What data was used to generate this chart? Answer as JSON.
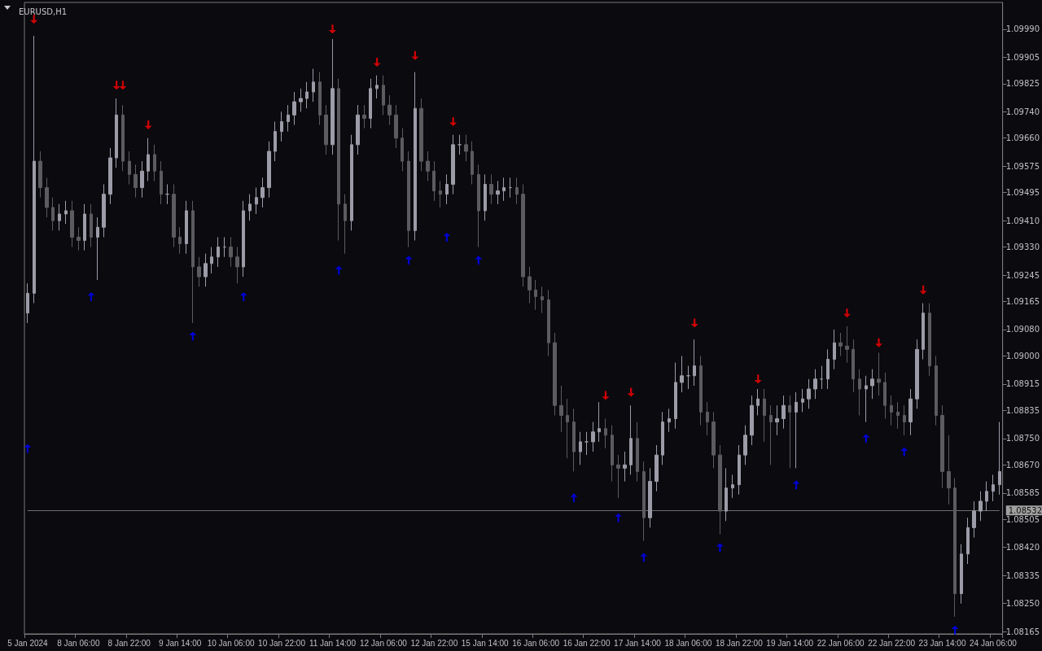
{
  "chart_data": {
    "type": "candlestick",
    "title": "EURUSD,H1",
    "categories": [
      "5 Jan 2024",
      null,
      null,
      null,
      null,
      null,
      null,
      null,
      "8 Jan 06:00",
      null,
      null,
      null,
      null,
      null,
      null,
      null,
      "8 Jan 22:00",
      null,
      null,
      null,
      null,
      null,
      null,
      null,
      "9 Jan 14:00",
      null,
      null,
      null,
      null,
      null,
      null,
      null,
      "10 Jan 06:00",
      null,
      null,
      null,
      null,
      null,
      null,
      null,
      "10 Jan 22:00",
      null,
      null,
      null,
      null,
      null,
      null,
      null,
      "11 Jan 14:00",
      null,
      null,
      null,
      null,
      null,
      null,
      null,
      "12 Jan 06:00",
      null,
      null,
      null,
      null,
      null,
      null,
      null,
      "12 Jan 22:00",
      null,
      null,
      null,
      null,
      null,
      null,
      null,
      "15 Jan 14:00",
      null,
      null,
      null,
      null,
      null,
      null,
      null,
      "16 Jan 06:00",
      null,
      null,
      null,
      null,
      null,
      null,
      null,
      "16 Jan 22:00",
      null,
      null,
      null,
      null,
      null,
      null,
      null,
      "17 Jan 14:00",
      null,
      null,
      null,
      null,
      null,
      null,
      null,
      "18 Jan 06:00",
      null,
      null,
      null,
      null,
      null,
      null,
      null,
      "18 Jan 22:00",
      null,
      null,
      null,
      null,
      null,
      null,
      null,
      "19 Jan 14:00",
      null,
      null,
      null,
      null,
      null,
      null,
      null,
      "22 Jan 06:00",
      null,
      null,
      null,
      null,
      null,
      null,
      null,
      "22 Jan 22:00",
      null,
      null,
      null,
      null,
      null,
      null,
      null,
      "23 Jan 14:00",
      null,
      null,
      null,
      null,
      null,
      null,
      null,
      "24 Jan 06:00",
      null
    ],
    "ylim": [
      1.08158,
      1.10071
    ],
    "yticks": [
      {
        "value": 1.08165,
        "label": "1.08165"
      },
      {
        "value": 1.0825,
        "label": "1.08250"
      },
      {
        "value": 1.08335,
        "label": "1.08335"
      },
      {
        "value": 1.0842,
        "label": "1.08420"
      },
      {
        "value": 1.08505,
        "label": "1.08505"
      },
      {
        "value": 1.08585,
        "label": "1.08585"
      },
      {
        "value": 1.0867,
        "label": "1.08670"
      },
      {
        "value": 1.0875,
        "label": "1.08750"
      },
      {
        "value": 1.08835,
        "label": "1.08835"
      },
      {
        "value": 1.08915,
        "label": "1.08915"
      },
      {
        "value": 1.09,
        "label": "1.09000"
      },
      {
        "value": 1.0908,
        "label": "1.09080"
      },
      {
        "value": 1.09165,
        "label": "1.09165"
      },
      {
        "value": 1.09245,
        "label": "1.09245"
      },
      {
        "value": 1.0933,
        "label": "1.09330"
      },
      {
        "value": 1.0941,
        "label": "1.09410"
      },
      {
        "value": 1.09495,
        "label": "1.09495"
      },
      {
        "value": 1.09575,
        "label": "1.09575"
      },
      {
        "value": 1.0966,
        "label": "1.09660"
      },
      {
        "value": 1.0974,
        "label": "1.09740"
      },
      {
        "value": 1.09825,
        "label": "1.09825"
      },
      {
        "value": 1.09905,
        "label": "1.09905"
      },
      {
        "value": 1.0999,
        "label": "1.09990"
      }
    ],
    "ref_lines": [
      {
        "axis": "y",
        "value": 1.08532,
        "label": "1.08532",
        "color": "#6e6e6e"
      }
    ],
    "series": [
      {
        "colors": [
          "#9c9ca8",
          "#9c9ca8",
          "#5c5c60",
          "#5c5c60",
          "#5c5c60",
          "#9c9ca8",
          "#9c9ca8",
          "#5c5c60",
          "#5c5c60",
          "#9c9ca8",
          "#5c5c60",
          "#9c9ca8",
          "#9c9ca8",
          "#9c9ca8",
          "#9c9ca8",
          "#5c5c60",
          "#5c5c60",
          "#5c5c60",
          "#9c9ca8",
          "#9c9ca8",
          "#5c5c60",
          "#5c5c60",
          "#9c9ca8",
          "#5c5c60",
          "#5c5c60",
          "#9c9ca8",
          "#5c5c60",
          "#5c5c60",
          "#9c9ca8",
          "#9c9ca8",
          "#9c9ca8",
          "#9c9ca8",
          "#5c5c60",
          "#5c5c60",
          "#9c9ca8",
          "#9c9ca8",
          "#9c9ca8",
          "#9c9ca8",
          "#9c9ca8",
          "#9c9ca8",
          "#9c9ca8",
          "#9c9ca8",
          "#9c9ca8",
          "#9c9ca8",
          "#9c9ca8",
          "#9c9ca8",
          "#5c5c60",
          "#5c5c60",
          "#9c9ca8",
          "#5c5c60",
          "#5c5c60",
          "#9c9ca8",
          "#9c9ca8",
          "#5c5c60",
          "#9c9ca8",
          "#9c9ca8",
          "#5c5c60",
          "#5c5c60",
          "#5c5c60",
          "#5c5c60",
          "#5c5c60",
          "#9c9ca8",
          "#5c5c60",
          "#5c5c60",
          "#5c5c60",
          "#5c5c60",
          "#9c9ca8",
          "#9c9ca8",
          "#9c9ca8",
          "#5c5c60",
          "#5c5c60",
          "#5c5c60",
          "#9c9ca8",
          "#5c5c60",
          "#9c9ca8",
          "#9c9ca8",
          "#9c9ca8",
          "#5c5c60",
          "#5c5c60",
          "#5c5c60",
          "#5c5c60",
          "#5c5c60",
          "#5c5c60",
          "#5c5c60",
          "#5c5c60",
          "#5c5c60",
          "#5c5c60",
          "#9c9ca8",
          "#9c9ca8",
          "#9c9ca8",
          "#9c9ca8",
          "#5c5c60",
          "#5c5c60",
          "#5c5c60",
          "#9c9ca8",
          "#9c9ca8",
          "#5c5c60",
          "#5c5c60",
          "#9c9ca8",
          "#9c9ca8",
          "#9c9ca8",
          "#9c9ca8",
          "#9c9ca8",
          "#9c9ca8",
          "#9c9ca8",
          "#9c9ca8",
          "#5c5c60",
          "#5c5c60",
          "#5c5c60",
          "#5c5c60",
          "#9c9ca8",
          "#9c9ca8",
          "#9c9ca8",
          "#9c9ca8",
          "#9c9ca8",
          "#9c9ca8",
          "#5c5c60",
          "#5c5c60",
          "#9c9ca8",
          "#9c9ca8",
          "#5c5c60",
          "#9c9ca8",
          "#9c9ca8",
          "#9c9ca8",
          "#9c9ca8",
          "#9c9ca8",
          "#9c9ca8",
          "#9c9ca8",
          "#5c5c60",
          "#5c5c60",
          "#5c5c60",
          "#5c5c60",
          "#9c9ca8",
          "#9c9ca8",
          "#5c5c60",
          "#5c5c60",
          "#5c5c60",
          "#5c5c60",
          "#5c5c60",
          "#9c9ca8",
          "#9c9ca8",
          "#9c9ca8",
          "#5c5c60",
          "#5c5c60",
          "#5c5c60",
          "#5c5c60",
          "#5c5c60",
          "#9c9ca8",
          "#9c9ca8",
          "#9c9ca8",
          "#9c9ca8",
          "#9c9ca8",
          "#9c9ca8",
          "#9c9ca8"
        ],
        "ohlc": [
          [
            1.0913,
            1.0922,
            1.091,
            1.0919
          ],
          [
            1.0919,
            1.0997,
            1.0916,
            1.0959
          ],
          [
            1.0959,
            1.0962,
            1.0948,
            1.0951
          ],
          [
            1.0951,
            1.0954,
            1.0942,
            1.0945
          ],
          [
            1.0945,
            1.0948,
            1.0938,
            1.0941
          ],
          [
            1.0941,
            1.0946,
            1.0938,
            1.0943
          ],
          [
            1.0943,
            1.0947,
            1.094,
            1.0944
          ],
          [
            1.0944,
            1.0947,
            1.0933,
            1.0936
          ],
          [
            1.0936,
            1.0939,
            1.0932,
            1.0935
          ],
          [
            1.0935,
            1.0946,
            1.0932,
            1.0943
          ],
          [
            1.0943,
            1.0946,
            1.0933,
            1.0936
          ],
          [
            1.0936,
            1.0942,
            1.0923,
            1.0939
          ],
          [
            1.0939,
            1.0952,
            1.0936,
            1.0949
          ],
          [
            1.0949,
            1.0963,
            1.0946,
            1.096
          ],
          [
            1.096,
            1.0978,
            1.0957,
            1.0973
          ],
          [
            1.0973,
            1.0976,
            1.0956,
            1.0959
          ],
          [
            1.0959,
            1.0962,
            1.0952,
            1.0955
          ],
          [
            1.0955,
            1.0958,
            1.0948,
            1.0951
          ],
          [
            1.0951,
            1.0959,
            1.0948,
            1.0956
          ],
          [
            1.0956,
            1.0966,
            1.0953,
            1.0961
          ],
          [
            1.0961,
            1.0964,
            1.0953,
            1.0956
          ],
          [
            1.0956,
            1.0959,
            1.0946,
            1.0949
          ],
          [
            1.0949,
            1.0952,
            1.0946,
            1.0949
          ],
          [
            1.0949,
            1.0952,
            1.0933,
            1.0936
          ],
          [
            1.0936,
            1.0939,
            1.0931,
            1.0934
          ],
          [
            1.0934,
            1.0947,
            1.0931,
            1.0944
          ],
          [
            1.0944,
            1.0947,
            1.091,
            1.0927
          ],
          [
            1.0927,
            1.093,
            1.0921,
            1.0924
          ],
          [
            1.0924,
            1.0931,
            1.0921,
            1.0928
          ],
          [
            1.0928,
            1.0933,
            1.0925,
            1.093
          ],
          [
            1.093,
            1.0936,
            1.0927,
            1.0933
          ],
          [
            1.0933,
            1.0936,
            1.093,
            1.0933
          ],
          [
            1.0933,
            1.0936,
            1.0927,
            1.093
          ],
          [
            1.093,
            1.0933,
            1.0922,
            1.0927
          ],
          [
            1.0927,
            1.0947,
            1.0924,
            1.0944
          ],
          [
            1.0944,
            1.0949,
            1.0941,
            1.0946
          ],
          [
            1.0946,
            1.0951,
            1.0943,
            1.0948
          ],
          [
            1.0948,
            1.0954,
            1.0945,
            1.0951
          ],
          [
            1.0951,
            1.0965,
            1.0948,
            1.0962
          ],
          [
            1.0962,
            1.0971,
            1.0959,
            1.0968
          ],
          [
            1.0968,
            1.0974,
            1.0965,
            1.0971
          ],
          [
            1.0971,
            1.0976,
            1.0968,
            1.0973
          ],
          [
            1.0973,
            1.098,
            1.097,
            1.0977
          ],
          [
            1.0977,
            1.0981,
            1.0974,
            1.0978
          ],
          [
            1.0978,
            1.0983,
            1.0975,
            1.098
          ],
          [
            1.098,
            1.0987,
            1.0977,
            1.0983
          ],
          [
            1.0983,
            1.0986,
            1.097,
            1.0973
          ],
          [
            1.0973,
            1.0976,
            1.0961,
            1.0964
          ],
          [
            1.0964,
            1.0996,
            1.0961,
            1.0981
          ],
          [
            1.0981,
            1.0984,
            1.0935,
            1.0946
          ],
          [
            1.0946,
            1.0949,
            1.0931,
            1.0941
          ],
          [
            1.0941,
            1.0967,
            1.0938,
            1.0964
          ],
          [
            1.0964,
            1.0976,
            1.0961,
            1.0973
          ],
          [
            1.0973,
            1.0976,
            1.0969,
            1.0972
          ],
          [
            1.0972,
            1.0984,
            1.0969,
            1.0981
          ],
          [
            1.0981,
            1.0985,
            1.0978,
            1.0982
          ],
          [
            1.0982,
            1.0985,
            1.0973,
            1.0976
          ],
          [
            1.0976,
            1.0979,
            1.097,
            1.0973
          ],
          [
            1.0973,
            1.0976,
            1.0963,
            1.0966
          ],
          [
            1.0966,
            1.0969,
            1.0956,
            1.0959
          ],
          [
            1.0959,
            1.0962,
            1.0933,
            1.0938
          ],
          [
            1.0938,
            1.0986,
            1.0935,
            1.0975
          ],
          [
            1.0975,
            1.0978,
            1.0956,
            1.0959
          ],
          [
            1.0959,
            1.0962,
            1.0953,
            1.0956
          ],
          [
            1.0956,
            1.0959,
            1.0947,
            1.095
          ],
          [
            1.095,
            1.0953,
            1.0945,
            1.0949
          ],
          [
            1.0949,
            1.0955,
            1.0946,
            1.0952
          ],
          [
            1.0952,
            1.0967,
            1.0949,
            1.0964
          ],
          [
            1.0964,
            1.0967,
            1.0961,
            1.0964
          ],
          [
            1.0964,
            1.0967,
            1.0959,
            1.0962
          ],
          [
            1.0962,
            1.0965,
            1.0952,
            1.0955
          ],
          [
            1.0955,
            1.0958,
            1.0933,
            1.0944
          ],
          [
            1.0944,
            1.0955,
            1.0941,
            1.0952
          ],
          [
            1.0952,
            1.0955,
            1.0946,
            1.0949
          ],
          [
            1.0949,
            1.0953,
            1.0946,
            1.095
          ],
          [
            1.095,
            1.0954,
            1.0947,
            1.0951
          ],
          [
            1.0951,
            1.0954,
            1.0948,
            1.0951
          ],
          [
            1.0951,
            1.0954,
            1.0946,
            1.0949
          ],
          [
            1.0949,
            1.0952,
            1.0921,
            1.0924
          ],
          [
            1.0924,
            1.0927,
            1.0916,
            1.092
          ],
          [
            1.092,
            1.0923,
            1.0914,
            1.0918
          ],
          [
            1.0918,
            1.0921,
            1.0913,
            1.0917
          ],
          [
            1.0917,
            1.092,
            1.09,
            1.0904
          ],
          [
            1.0904,
            1.0907,
            1.0882,
            1.0885
          ],
          [
            1.0885,
            1.0891,
            1.0877,
            1.0882
          ],
          [
            1.0882,
            1.0887,
            1.0869,
            1.088
          ],
          [
            1.088,
            1.0884,
            1.0865,
            1.0871
          ],
          [
            1.0871,
            1.0877,
            1.0867,
            1.0874
          ],
          [
            1.0874,
            1.0877,
            1.087,
            1.0874
          ],
          [
            1.0874,
            1.088,
            1.0871,
            1.0877
          ],
          [
            1.0877,
            1.0886,
            1.0874,
            1.0878
          ],
          [
            1.0878,
            1.0881,
            1.0872,
            1.0876
          ],
          [
            1.0876,
            1.0879,
            1.0862,
            1.0867
          ],
          [
            1.0867,
            1.087,
            1.0857,
            1.0866
          ],
          [
            1.0866,
            1.0871,
            1.0862,
            1.0867
          ],
          [
            1.0867,
            1.0885,
            1.0864,
            1.0875
          ],
          [
            1.0875,
            1.088,
            1.0862,
            1.0865
          ],
          [
            1.0865,
            1.0868,
            1.0844,
            1.0851
          ],
          [
            1.0851,
            1.0866,
            1.0848,
            1.0862
          ],
          [
            1.0862,
            1.0873,
            1.0859,
            1.087
          ],
          [
            1.087,
            1.0883,
            1.0867,
            1.088
          ],
          [
            1.088,
            1.0884,
            1.0877,
            1.0881
          ],
          [
            1.0881,
            1.0898,
            1.0878,
            1.0892
          ],
          [
            1.0892,
            1.09,
            1.0889,
            1.0894
          ],
          [
            1.0894,
            1.0897,
            1.089,
            1.0894
          ],
          [
            1.0894,
            1.0905,
            1.0891,
            1.0897
          ],
          [
            1.0897,
            1.09,
            1.0879,
            1.0883
          ],
          [
            1.0883,
            1.0886,
            1.0876,
            1.088
          ],
          [
            1.088,
            1.0883,
            1.0866,
            1.087
          ],
          [
            1.087,
            1.0873,
            1.0846,
            1.0853
          ],
          [
            1.0853,
            1.0866,
            1.085,
            1.086
          ],
          [
            1.086,
            1.0864,
            1.0857,
            1.0861
          ],
          [
            1.0861,
            1.0873,
            1.0858,
            1.087
          ],
          [
            1.087,
            1.0879,
            1.0867,
            1.0876
          ],
          [
            1.0876,
            1.0888,
            1.0873,
            1.0885
          ],
          [
            1.0885,
            1.089,
            1.0882,
            1.0887
          ],
          [
            1.0887,
            1.089,
            1.0874,
            1.0882
          ],
          [
            1.0882,
            1.0885,
            1.0867,
            1.088
          ],
          [
            1.088,
            1.0885,
            1.0876,
            1.0881
          ],
          [
            1.0881,
            1.0888,
            1.0878,
            1.0885
          ],
          [
            1.0885,
            1.0888,
            1.0866,
            1.0883
          ],
          [
            1.0883,
            1.0889,
            1.0866,
            1.0886
          ],
          [
            1.0886,
            1.089,
            1.0883,
            1.0887
          ],
          [
            1.0887,
            1.0893,
            1.0884,
            1.089
          ],
          [
            1.089,
            1.0896,
            1.0887,
            1.0893
          ],
          [
            1.0893,
            1.0897,
            1.089,
            1.0893
          ],
          [
            1.0893,
            1.0902,
            1.089,
            1.0899
          ],
          [
            1.0899,
            1.0908,
            1.0896,
            1.0904
          ],
          [
            1.0904,
            1.0907,
            1.09,
            1.0903
          ],
          [
            1.0903,
            1.0909,
            1.0898,
            1.0902
          ],
          [
            1.0902,
            1.0905,
            1.0889,
            1.0893
          ],
          [
            1.0893,
            1.0896,
            1.0882,
            1.089
          ],
          [
            1.089,
            1.0894,
            1.088,
            1.0891
          ],
          [
            1.0891,
            1.0896,
            1.0887,
            1.0893
          ],
          [
            1.0893,
            1.0901,
            1.0888,
            1.0892
          ],
          [
            1.0892,
            1.0895,
            1.0881,
            1.0885
          ],
          [
            1.0885,
            1.0888,
            1.0879,
            1.0883
          ],
          [
            1.0883,
            1.0886,
            1.0878,
            1.0882
          ],
          [
            1.0882,
            1.0885,
            1.0876,
            1.088
          ],
          [
            1.088,
            1.089,
            1.0876,
            1.0887
          ],
          [
            1.0887,
            1.0905,
            1.0884,
            1.0902
          ],
          [
            1.0902,
            1.0916,
            1.0899,
            1.0913
          ],
          [
            1.0913,
            1.0916,
            1.0894,
            1.0897
          ],
          [
            1.0897,
            1.09,
            1.0879,
            1.0882
          ],
          [
            1.0882,
            1.0885,
            1.086,
            1.0865
          ],
          [
            1.0865,
            1.0876,
            1.0855,
            1.086
          ],
          [
            1.086,
            1.0863,
            1.0821,
            1.0828
          ],
          [
            1.0828,
            1.0843,
            1.0825,
            1.084
          ],
          [
            1.084,
            1.0851,
            1.0837,
            1.0848
          ],
          [
            1.0848,
            1.0856,
            1.0845,
            1.0853
          ],
          [
            1.0853,
            1.0859,
            1.085,
            1.0856
          ],
          [
            1.0856,
            1.0862,
            1.0853,
            1.0859
          ],
          [
            1.0859,
            1.0864,
            1.0856,
            1.0861
          ],
          [
            1.0861,
            1.088,
            1.0858,
            1.0865
          ]
        ]
      },
      {
        "type": "scatter",
        "color": "#ff0000",
        "values": [
          null,
          1.1002,
          null,
          null,
          null,
          null,
          null,
          null,
          null,
          null,
          null,
          null,
          null,
          null,
          1.0982,
          1.0982,
          null,
          null,
          null,
          1.097,
          null,
          null,
          null,
          null,
          null,
          null,
          null,
          null,
          null,
          null,
          null,
          null,
          null,
          null,
          null,
          null,
          null,
          null,
          null,
          null,
          null,
          null,
          null,
          null,
          null,
          null,
          null,
          null,
          1.0999,
          null,
          null,
          null,
          null,
          null,
          null,
          1.0989,
          null,
          null,
          null,
          null,
          null,
          1.0991,
          null,
          null,
          null,
          null,
          null,
          1.0971,
          null,
          null,
          null,
          null,
          null,
          null,
          null,
          null,
          null,
          null,
          null,
          null,
          null,
          null,
          null,
          null,
          null,
          null,
          null,
          null,
          null,
          null,
          null,
          1.0888,
          null,
          null,
          null,
          1.0889,
          null,
          null,
          null,
          null,
          null,
          null,
          null,
          null,
          null,
          1.091,
          null,
          null,
          null,
          null,
          null,
          null,
          null,
          null,
          null,
          1.0893,
          null,
          null,
          null,
          null,
          null,
          null,
          null,
          null,
          null,
          null,
          null,
          null,
          null,
          1.0913,
          null,
          null,
          null,
          null,
          1.0904,
          null,
          null,
          null,
          null,
          null,
          null,
          1.092,
          null,
          null,
          null,
          null,
          null,
          null,
          null,
          null,
          null,
          null,
          null,
          null
        ]
      },
      {
        "type": "scatter",
        "color": "#0000ff",
        "values": [
          1.0872,
          null,
          null,
          null,
          null,
          null,
          null,
          null,
          null,
          null,
          1.0918,
          null,
          null,
          null,
          null,
          null,
          null,
          null,
          null,
          null,
          null,
          null,
          null,
          null,
          null,
          null,
          1.0906,
          null,
          null,
          null,
          null,
          null,
          null,
          null,
          1.0918,
          null,
          null,
          null,
          null,
          null,
          null,
          null,
          null,
          null,
          null,
          null,
          null,
          null,
          null,
          1.0926,
          null,
          null,
          null,
          null,
          null,
          null,
          null,
          null,
          null,
          null,
          1.0929,
          null,
          null,
          null,
          null,
          null,
          1.0936,
          null,
          null,
          null,
          null,
          1.0929,
          null,
          null,
          null,
          null,
          null,
          null,
          null,
          null,
          null,
          null,
          null,
          null,
          null,
          null,
          1.0857,
          null,
          null,
          null,
          null,
          null,
          null,
          1.0851,
          null,
          null,
          null,
          1.0839,
          null,
          null,
          null,
          null,
          null,
          null,
          null,
          null,
          null,
          null,
          null,
          1.0842,
          null,
          null,
          null,
          null,
          null,
          null,
          null,
          null,
          null,
          null,
          null,
          1.0861,
          null,
          null,
          null,
          null,
          null,
          null,
          null,
          null,
          null,
          null,
          1.0875,
          null,
          null,
          null,
          null,
          null,
          1.0871,
          null,
          null,
          null,
          null,
          null,
          null,
          null,
          1.0817,
          null,
          null,
          null,
          null,
          null,
          null,
          null
        ]
      }
    ]
  }
}
